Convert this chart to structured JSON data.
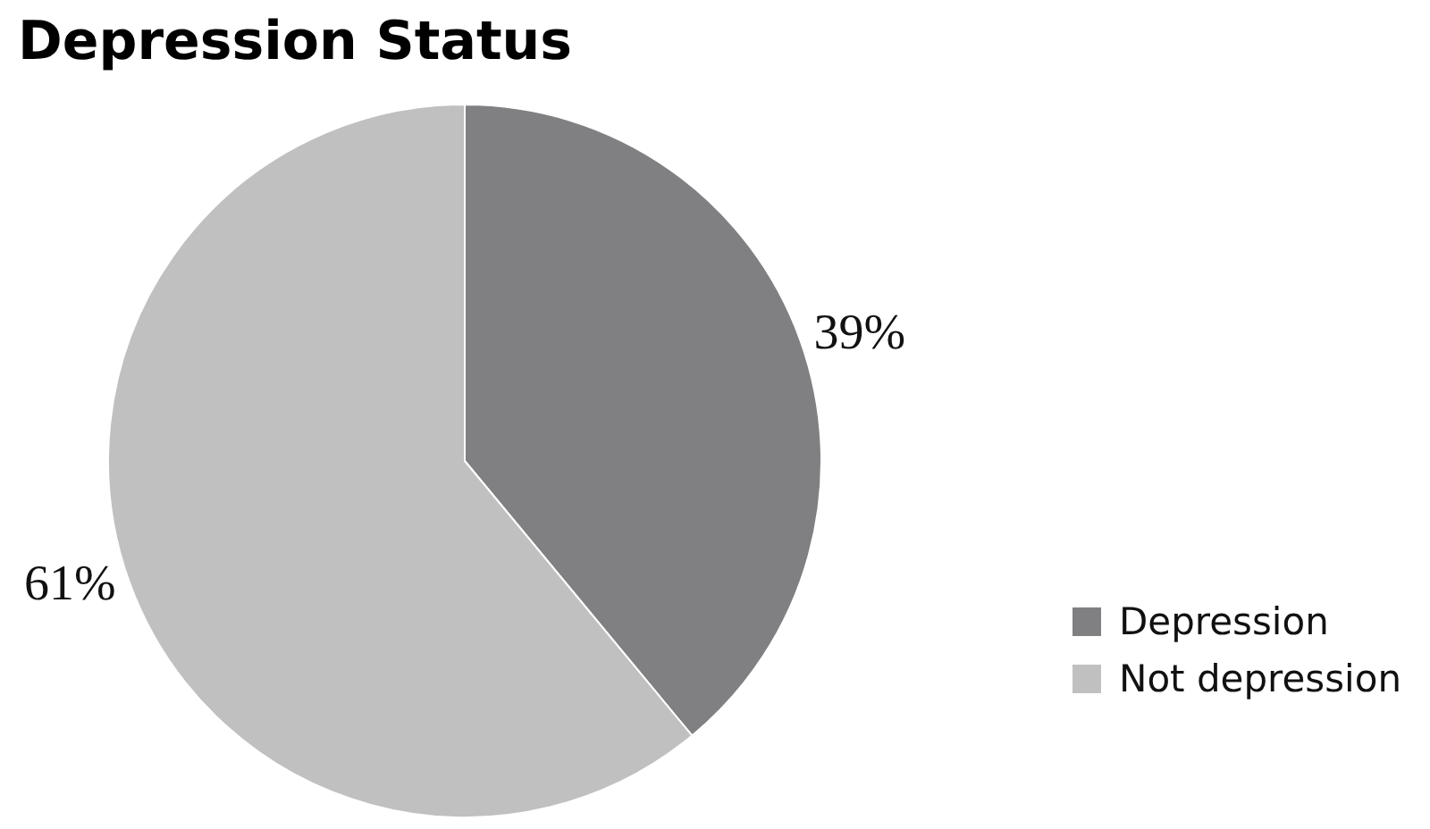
{
  "chart_data": {
    "type": "pie",
    "title": "Depression Status",
    "categories": [
      "Depression",
      "Not depression"
    ],
    "values": [
      39,
      61
    ],
    "colors": [
      "#808083",
      "#c0c0c0"
    ],
    "value_labels": [
      "39%",
      "61%"
    ],
    "legend": "right"
  }
}
